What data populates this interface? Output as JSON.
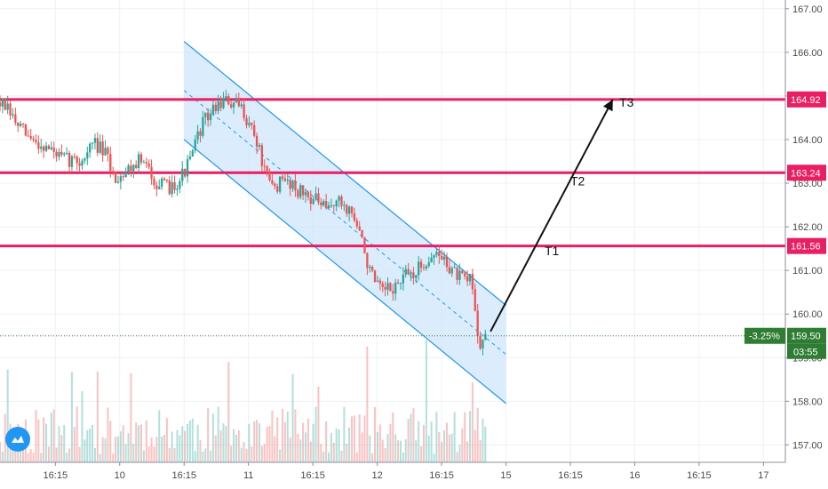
{
  "chart_data": {
    "type": "candlestick",
    "title": "",
    "xlabel": "",
    "ylabel": "",
    "ylim": [
      156.6,
      167.2
    ],
    "y_ticks": [
      "157.00",
      "158.00",
      "159.00",
      "160.00",
      "161.00",
      "162.00",
      "163.00",
      "164.00",
      "165.00",
      "166.00",
      "167.00"
    ],
    "x_ticks": [
      "16:15",
      "10",
      "16:15",
      "11",
      "16:15",
      "12",
      "16:15",
      "15",
      "16:15",
      "16",
      "16:15",
      "17"
    ],
    "x_tick_units": [
      0.5,
      1,
      1.5,
      2,
      2.5,
      3,
      3.5,
      4,
      4.5,
      5,
      5.5,
      6
    ],
    "x_range": [
      0.07,
      6.17
    ],
    "price_path": [
      [
        0.07,
        164.85
      ],
      [
        0.12,
        164.7
      ],
      [
        0.2,
        164.35
      ],
      [
        0.3,
        164.0
      ],
      [
        0.45,
        163.8
      ],
      [
        0.55,
        163.55
      ],
      [
        0.7,
        163.5
      ],
      [
        0.8,
        163.95
      ],
      [
        0.9,
        163.6
      ],
      [
        0.96,
        163.1
      ],
      [
        1.05,
        163.3
      ],
      [
        1.15,
        163.55
      ],
      [
        1.25,
        163.2
      ],
      [
        1.3,
        162.95
      ],
      [
        1.38,
        162.9
      ],
      [
        1.45,
        163.05
      ],
      [
        1.52,
        163.35
      ],
      [
        1.58,
        163.8
      ],
      [
        1.63,
        164.3
      ],
      [
        1.7,
        164.6
      ],
      [
        1.8,
        164.9
      ],
      [
        1.87,
        164.8
      ],
      [
        1.95,
        164.7
      ],
      [
        2.02,
        164.3
      ],
      [
        2.08,
        163.8
      ],
      [
        2.13,
        163.2
      ],
      [
        2.18,
        162.9
      ],
      [
        2.25,
        163.0
      ],
      [
        2.32,
        163.05
      ],
      [
        2.4,
        162.8
      ],
      [
        2.48,
        162.7
      ],
      [
        2.55,
        162.55
      ],
      [
        2.6,
        162.35
      ],
      [
        2.67,
        162.6
      ],
      [
        2.73,
        162.5
      ],
      [
        2.8,
        162.35
      ],
      [
        2.87,
        161.8
      ],
      [
        2.93,
        161.1
      ],
      [
        2.98,
        160.7
      ],
      [
        3.03,
        160.5
      ],
      [
        3.1,
        160.55
      ],
      [
        3.17,
        160.7
      ],
      [
        3.23,
        160.9
      ],
      [
        3.3,
        160.95
      ],
      [
        3.37,
        161.2
      ],
      [
        3.43,
        161.35
      ],
      [
        3.5,
        161.3
      ],
      [
        3.57,
        161.05
      ],
      [
        3.63,
        160.85
      ],
      [
        3.7,
        160.7
      ],
      [
        3.73,
        160.9
      ],
      [
        3.77,
        159.8
      ],
      [
        3.8,
        159.3
      ],
      [
        3.84,
        159.5
      ]
    ],
    "candle_seed": 7,
    "volume_seed": 11,
    "channel": {
      "upper_start": [
        1.5,
        166.25
      ],
      "upper_end": [
        4.0,
        160.2
      ],
      "lower_start": [
        1.5,
        164.0
      ],
      "lower_end": [
        4.0,
        157.95
      ]
    },
    "levels": [
      {
        "value": 164.92,
        "label": "164.92",
        "color": "#e91e63"
      },
      {
        "value": 163.24,
        "label": "163.24",
        "color": "#e91e63"
      },
      {
        "value": 161.56,
        "label": "161.56",
        "color": "#e91e63"
      }
    ],
    "targets": [
      {
        "name": "T1",
        "x": 4.3,
        "y": 161.35
      },
      {
        "name": "T2",
        "x": 4.5,
        "y": 162.95
      },
      {
        "name": "T3",
        "x": 4.88,
        "y": 164.75
      }
    ],
    "arrow": {
      "from": [
        3.88,
        159.6
      ],
      "to": [
        4.83,
        164.92
      ]
    },
    "last_price": {
      "value": 159.5,
      "label": "159.50",
      "change_label": "-3.25%",
      "countdown": "03:55",
      "color": "#2e7d32"
    },
    "colors": {
      "up": "#26a69a",
      "down": "#ef5350",
      "channel_fill": "#cfe5fb",
      "channel_line": "#2196f3",
      "grid": "#eef1f4",
      "level": "#e91e63",
      "arrow": "#111111",
      "price_line": "#2e7d32",
      "logo": "#2196f3"
    }
  }
}
